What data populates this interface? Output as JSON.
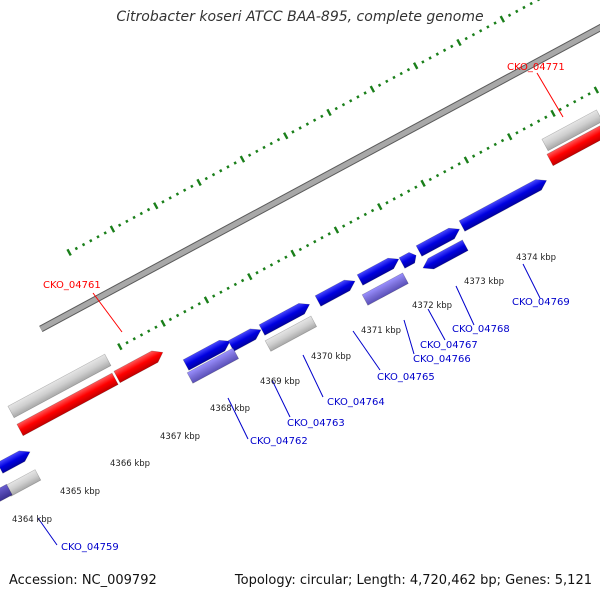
{
  "title": "Citrobacter koseri ATCC BAA-895, complete genome",
  "accession": "Accession: NC_009792",
  "summary": "Topology: circular; Length: 4,720,462 bp; Genes: 5,121",
  "colors": {
    "backbone": "#8c8c8c",
    "tick": "#1a7f1a",
    "forward_gene": "#0000e0",
    "reverse_gene_light": "#7a6fd8",
    "reverse_gene_dark": "#4b3fa0",
    "rna_gene": "#ff0000",
    "gene_shadow": "#c8c8c8",
    "label_blue": "#0000cc",
    "label_red": "#ff0000"
  },
  "ruler_labels": [
    "4364 kbp",
    "4365 kbp",
    "4366 kbp",
    "4367 kbp",
    "4368 kbp",
    "4369 kbp",
    "4370 kbp",
    "4371 kbp",
    "4372 kbp",
    "4373 kbp",
    "4374 kbp"
  ],
  "gene_labels": [
    {
      "text": "CKO_04771",
      "color": "red"
    },
    {
      "text": "CKO_04761",
      "color": "red"
    },
    {
      "text": "CKO_04769",
      "color": "blue"
    },
    {
      "text": "CKO_04768",
      "color": "blue"
    },
    {
      "text": "CKO_04767",
      "color": "blue"
    },
    {
      "text": "CKO_04766",
      "color": "blue"
    },
    {
      "text": "CKO_04765",
      "color": "blue"
    },
    {
      "text": "CKO_04764",
      "color": "blue"
    },
    {
      "text": "CKO_04763",
      "color": "blue"
    },
    {
      "text": "CKO_04762",
      "color": "blue"
    },
    {
      "text": "CKO_04759",
      "color": "blue"
    }
  ]
}
